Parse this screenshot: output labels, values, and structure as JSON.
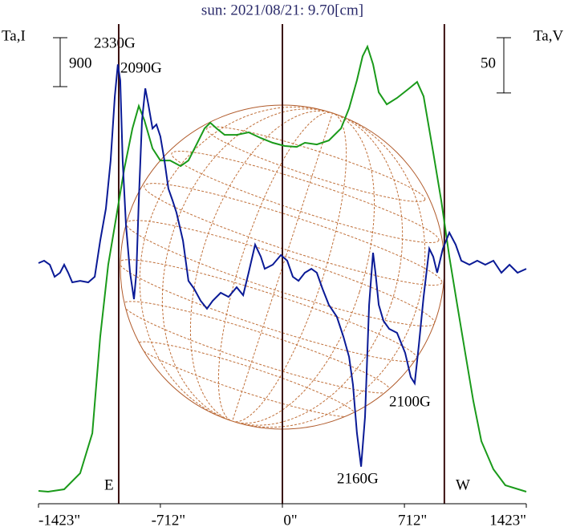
{
  "chart_data": {
    "type": "line",
    "title": "sun: 2021/08/21: 9.70[cm]",
    "y_label": "Ta,I",
    "y2_label": "Ta,V",
    "xlim": [
      -1423,
      1423
    ],
    "xticks": [
      {
        "value": -1423,
        "label": "-1423\""
      },
      {
        "value": -712,
        "label": "-712\""
      },
      {
        "value": 0,
        "label": "0\""
      },
      {
        "value": 712,
        "label": "712\""
      },
      {
        "value": 1423,
        "label": "1423\""
      }
    ],
    "ylim": [
      -192,
      8630
    ],
    "y2lim": [
      -209,
      225
    ],
    "scale_bar_y": 900,
    "scale_bar_y2": 50,
    "vlines": [
      -955,
      0,
      945
    ],
    "limb_labels": [
      "E",
      "W"
    ],
    "annotations": [
      "2330G",
      "2090G",
      "2160G",
      "2100G"
    ],
    "series": [
      {
        "name": "I",
        "color": "#1a9a1a",
        "axis": "y",
        "x": [
          -1423,
          -1367,
          -1273,
          -1180,
          -1109,
          -1063,
          -1016,
          -969,
          -922,
          -875,
          -838,
          -805,
          -758,
          -712,
          -655,
          -594,
          -548,
          -501,
          -454,
          -421,
          -384,
          -337,
          -267,
          -197,
          -126,
          -56,
          14,
          84,
          131,
          201,
          271,
          342,
          389,
          435,
          468,
          496,
          529,
          562,
          609,
          669,
          740,
          786,
          824,
          880,
          927,
          974,
          1020,
          1067,
          1114,
          1161,
          1231,
          1301,
          1423
        ],
        "values": [
          44,
          30,
          74,
          369,
          1106,
          2876,
          4204,
          5089,
          5974,
          6711,
          7124,
          6859,
          6343,
          6121,
          6121,
          6018,
          6121,
          6416,
          6711,
          6815,
          6711,
          6593,
          6593,
          6638,
          6534,
          6446,
          6387,
          6372,
          6446,
          6416,
          6490,
          6711,
          7080,
          7596,
          8039,
          8216,
          7891,
          7375,
          7154,
          7272,
          7449,
          7567,
          7301,
          6269,
          5384,
          4351,
          3466,
          2581,
          1696,
          959,
          443,
          148,
          30
        ]
      },
      {
        "name": "V",
        "color": "#0a1a96",
        "axis": "y2",
        "x": [
          -1423,
          -1390,
          -1357,
          -1329,
          -1297,
          -1273,
          -1250,
          -1226,
          -1180,
          -1133,
          -1095,
          -1063,
          -1030,
          -1002,
          -978,
          -960,
          -946,
          -932,
          -913,
          -889,
          -866,
          -852,
          -838,
          -819,
          -800,
          -782,
          -758,
          -735,
          -712,
          -688,
          -665,
          -641,
          -618,
          -580,
          -548,
          -515,
          -477,
          -440,
          -407,
          -360,
          -314,
          -267,
          -229,
          -197,
          -159,
          -126,
          -103,
          -56,
          -9,
          28,
          61,
          94,
          131,
          169,
          201,
          234,
          271,
          318,
          356,
          389,
          412,
          435,
          459,
          482,
          506,
          529,
          543,
          562,
          590,
          623,
          669,
          716,
          749,
          772,
          796,
          824,
          857,
          880,
          903,
          936,
          974,
          1011,
          1044,
          1091,
          1137,
          1184,
          1231,
          1278,
          1325,
          1372,
          1423
        ],
        "values": [
          8.7,
          10.9,
          7.3,
          -3.6,
          0,
          7.3,
          0,
          -8.7,
          -7.3,
          -8.7,
          -3.6,
          29,
          58,
          101.5,
          159.5,
          188.5,
          174,
          101.5,
          43.5,
          0,
          -23.9,
          0,
          65.3,
          137.8,
          166.8,
          152.3,
          130.5,
          134.1,
          123.3,
          101.5,
          76.1,
          65.3,
          54.4,
          29,
          -7.3,
          -14.5,
          -25.4,
          -32.6,
          -25.4,
          -18.1,
          -21.8,
          -13.1,
          -20.3,
          0,
          25.4,
          14.5,
          3.6,
          7.3,
          16,
          10.9,
          -3.6,
          -7.3,
          0,
          3.6,
          0,
          -14.5,
          -29,
          -39.9,
          -58,
          -76.1,
          -101.5,
          -145,
          -175.5,
          -130.5,
          -29,
          18.1,
          0,
          -29,
          -43.5,
          -50.8,
          -54.4,
          -72.5,
          -94.3,
          -100.1,
          -65.3,
          -21.8,
          21.8,
          14.5,
          0,
          21.8,
          36.3,
          25.4,
          10.9,
          7.3,
          10.9,
          7.3,
          10.9,
          0,
          7.3,
          0,
          3.6
        ]
      }
    ]
  }
}
